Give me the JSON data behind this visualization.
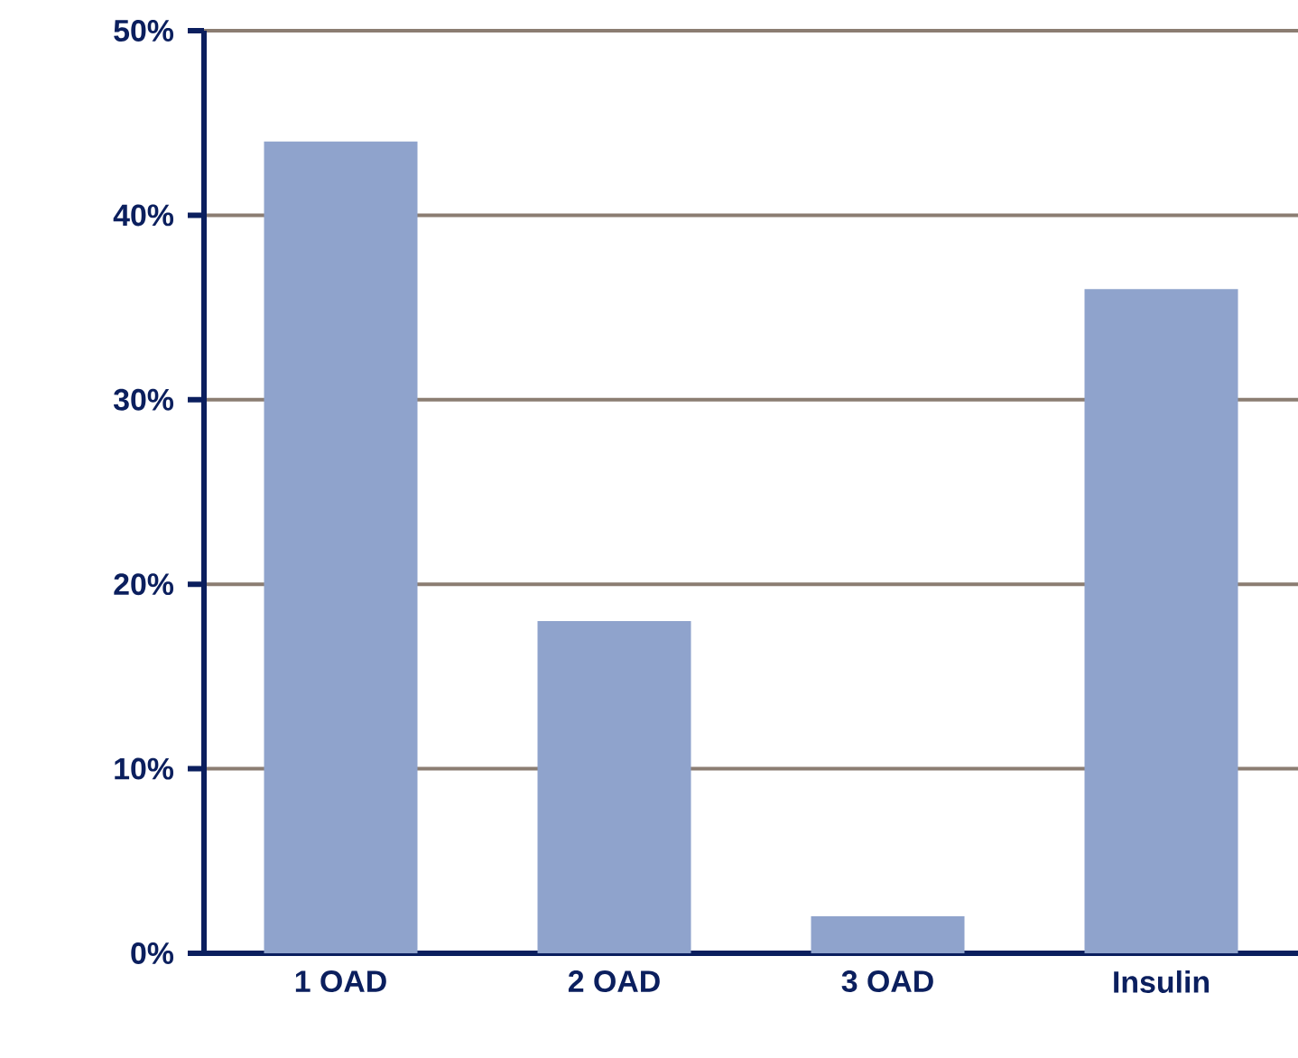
{
  "chart_data": {
    "type": "bar",
    "categories": [
      "1 OAD",
      "2 OAD",
      "3 OAD",
      "Insulin"
    ],
    "values": [
      44,
      18,
      2,
      36
    ],
    "color": "#8fa3cc",
    "ylim": [
      0,
      50
    ],
    "yticks": [
      {
        "value": 0,
        "label": "0%"
      },
      {
        "value": 10,
        "label": "10%"
      },
      {
        "value": 20,
        "label": "20%"
      },
      {
        "value": 30,
        "label": "30%"
      },
      {
        "value": 40,
        "label": "40%"
      },
      {
        "value": 50,
        "label": "50%"
      }
    ],
    "grid": "y"
  }
}
